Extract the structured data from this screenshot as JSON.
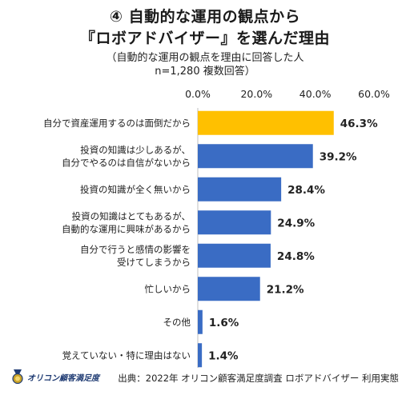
{
  "header": {
    "title_line1": "④ 自動的な運用の観点から",
    "title_line2": "『ロボアドバイザー』を選んだ理由",
    "subtitle_line1": "（自動的な運用の観点を理由に回答した人",
    "subtitle_line2": "n=1,280  複数回答）"
  },
  "footer": {
    "logo_text": "オリコン顧客満足度",
    "source": "出典：2022年 オリコン顧客満足度調査 ロボアドバイザー 利用実態"
  },
  "chart_data": {
    "type": "bar",
    "orientation": "horizontal",
    "xlim": [
      0,
      60
    ],
    "ticks": [
      "0.0%",
      "20.0%",
      "40.0%",
      "60.0%"
    ],
    "tick_values": [
      0,
      20,
      40,
      60
    ],
    "categories": [
      [
        "自分で資産運用するのは面倒だから"
      ],
      [
        "投資の知識は少しあるが、",
        "自分でやるのは自信がないから"
      ],
      [
        "投資の知識が全く無いから"
      ],
      [
        "投資の知識はとてもあるが、",
        "自動的な運用に興味があるから"
      ],
      [
        "自分で行うと感情の影響を",
        "受けてしまうから"
      ],
      [
        "忙しいから"
      ],
      [
        "その他"
      ],
      [
        "覚えていない・特に理由はない"
      ]
    ],
    "values": [
      46.3,
      39.2,
      28.4,
      24.9,
      24.8,
      21.2,
      1.6,
      1.4
    ],
    "value_labels": [
      "46.3%",
      "39.2%",
      "28.4%",
      "24.9%",
      "24.8%",
      "21.2%",
      "1.6%",
      "1.4%"
    ],
    "colors": {
      "highlight": "#FFC000",
      "default": "#3A6CC4"
    }
  }
}
